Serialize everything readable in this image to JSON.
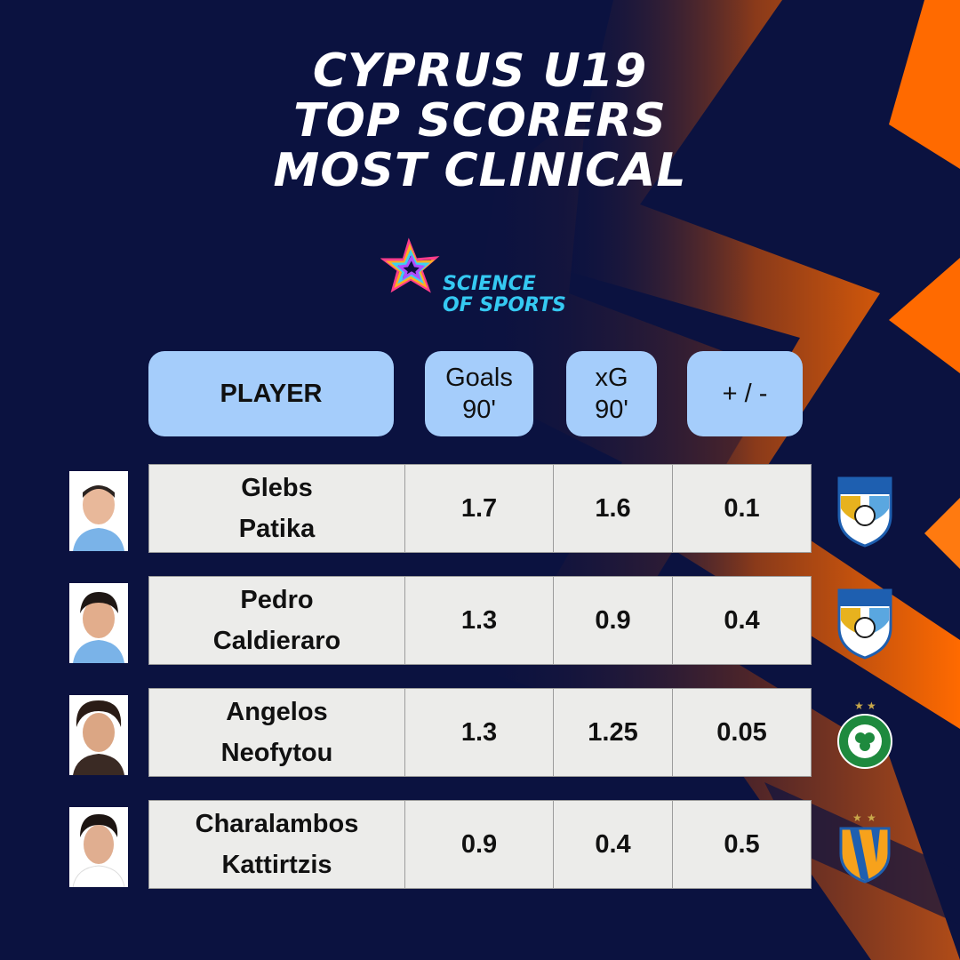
{
  "title": {
    "line1": "CYPRUS U19",
    "line2": "TOP SCORERS",
    "line3": "MOST CLINICAL"
  },
  "logo": {
    "line1": "SCIENCE",
    "line2": "OF SPORTS"
  },
  "table": {
    "headers": {
      "player": "PLAYER",
      "goals_l1": "Goals",
      "goals_l2": "90'",
      "xg_l1": "xG",
      "xg_l2": "90'",
      "diff": "+ / -"
    },
    "rows": [
      {
        "first": "Glebs",
        "last": "Patika",
        "goals": "1.7",
        "xg": "1.6",
        "diff": "0.1",
        "club_icon": "pafos-badge-icon"
      },
      {
        "first": "Pedro",
        "last": "Caldieraro",
        "goals": "1.3",
        "xg": "0.9",
        "diff": "0.4",
        "club_icon": "pafos-badge-icon"
      },
      {
        "first": "Angelos",
        "last": "Neofytou",
        "goals": "1.3",
        "xg": "1.25",
        "diff": "0.05",
        "club_icon": "omonoia-badge-icon"
      },
      {
        "first": "Charalambos",
        "last": "Kattirtzis",
        "goals": "0.9",
        "xg": "0.4",
        "diff": "0.5",
        "club_icon": "apoel-badge-icon"
      }
    ]
  },
  "colors": {
    "background": "#0b1240",
    "accent_orange": "#ff6a00",
    "header_pill": "#a5cdfb",
    "cell": "#ececea"
  }
}
